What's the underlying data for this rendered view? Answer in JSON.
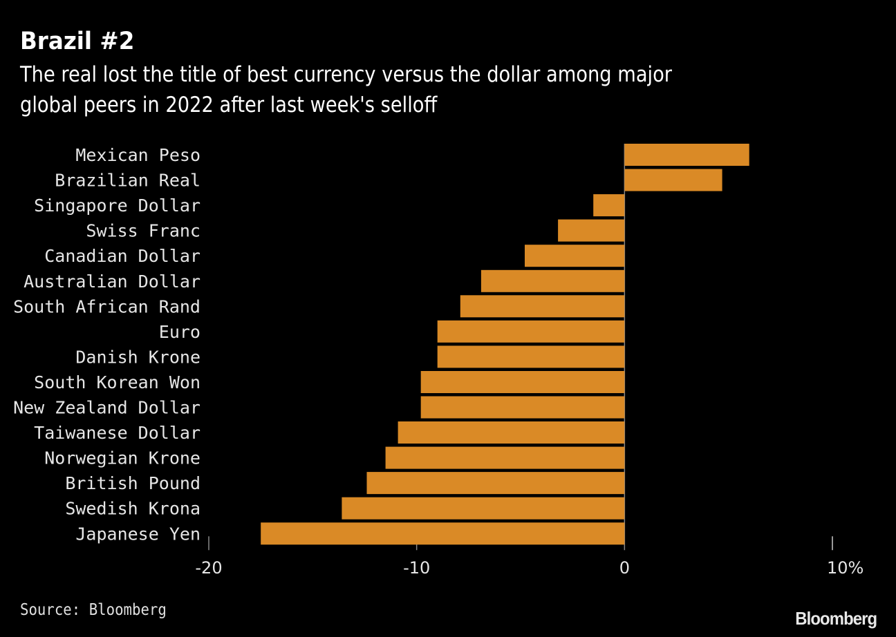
{
  "header": {
    "title": "Brazil #2",
    "subtitle": "The real lost the title of best currency versus the dollar among major\nglobal peers in 2022 after last week's selloff"
  },
  "footer": {
    "source": "Source: Bloomberg",
    "logo": "Bloomberg"
  },
  "colors": {
    "bar": "#DA8A26",
    "background": "#000000",
    "text": "#FFFFFF",
    "tick": "#888888"
  },
  "chart_data": {
    "type": "bar",
    "orientation": "horizontal",
    "title": "Brazil #2",
    "subtitle": "The real lost the title of best currency versus the dollar among major global peers in 2022 after last week's selloff",
    "xlabel": "",
    "ylabel": "",
    "unit": "%",
    "categories": [
      "Mexican Peso",
      "Brazilian Real",
      "Singapore Dollar",
      "Swiss Franc",
      "Canadian Dollar",
      "Australian Dollar",
      "South African Rand",
      "Euro",
      "Danish Krone",
      "South Korean Won",
      "New Zealand Dollar",
      "Taiwanese Dollar",
      "Norwegian Krone",
      "British Pound",
      "Swedish Krona",
      "Japanese Yen"
    ],
    "values": [
      6.0,
      4.7,
      -1.5,
      -3.2,
      -4.8,
      -6.9,
      -7.9,
      -9.0,
      -9.0,
      -9.8,
      -9.8,
      -10.9,
      -11.5,
      -12.4,
      -13.6,
      -17.5
    ],
    "xlim": [
      -20,
      10
    ],
    "xticks": [
      -20,
      -10,
      0,
      10
    ],
    "xtick_labels": [
      "-20",
      "-10",
      "0",
      "10%"
    ],
    "grid": false,
    "legend": "none",
    "source": "Source: Bloomberg"
  }
}
